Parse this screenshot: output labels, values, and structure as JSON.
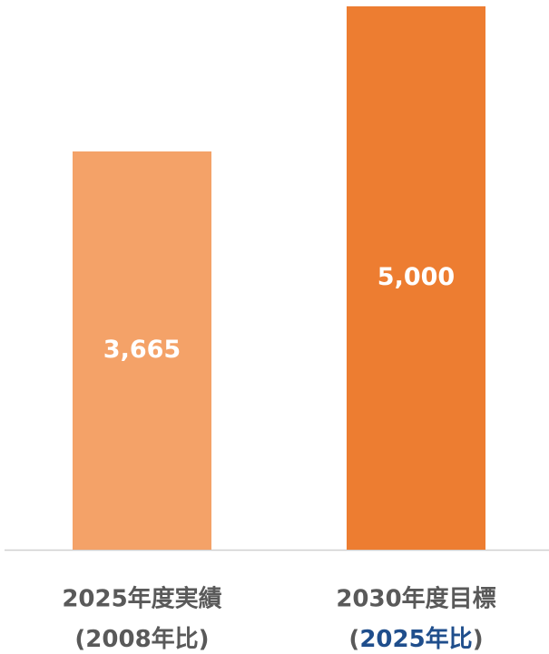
{
  "chart_data": {
    "type": "bar",
    "categories": [
      "2025年度実績",
      "2030年度目標"
    ],
    "category_notes": [
      [
        {
          "text": "(2008年比)"
        }
      ],
      [
        {
          "text": "("
        },
        {
          "text": "2025年比",
          "color": "#1f4e8c"
        },
        {
          "text": ")"
        }
      ]
    ],
    "values": [
      3665,
      5000
    ],
    "value_labels": [
      "3,665",
      "5,000"
    ],
    "colors": [
      "#f4a268",
      "#ed7d31"
    ],
    "ylim": [
      0,
      5000
    ]
  }
}
